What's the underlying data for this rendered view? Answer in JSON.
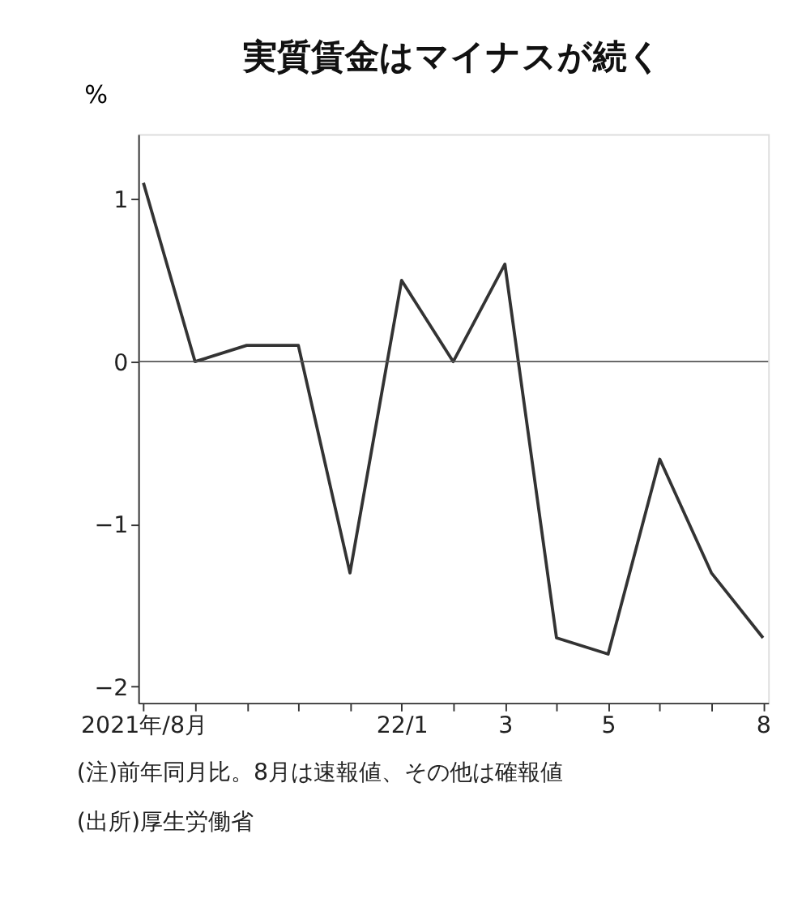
{
  "chart_data": {
    "type": "line",
    "title": "実質賃金はマイナスが続く",
    "ylabel": "%",
    "categories": [
      "2021年/8月",
      null,
      null,
      null,
      null,
      "22/1",
      null,
      "3",
      null,
      "5",
      null,
      null,
      "8"
    ],
    "series": [
      {
        "color": "#333333",
        "values": [
          1.1,
          0.0,
          0.1,
          0.1,
          -1.3,
          0.5,
          0.0,
          0.6,
          -1.7,
          -1.8,
          -0.6,
          -1.3,
          -1.7
        ]
      }
    ],
    "ylim": [
      -2.1,
      1.4
    ],
    "yticks": [
      -2,
      -1,
      0,
      1
    ],
    "ref_lines": [
      {
        "axis": "y",
        "value": 0,
        "color": "#555555"
      }
    ],
    "grid": false,
    "marker": "none",
    "line_style": "solid",
    "annotations": [
      "(注)前年同月比。8月は速報値、その他は確報値",
      "(出所)厚生労働省"
    ]
  }
}
